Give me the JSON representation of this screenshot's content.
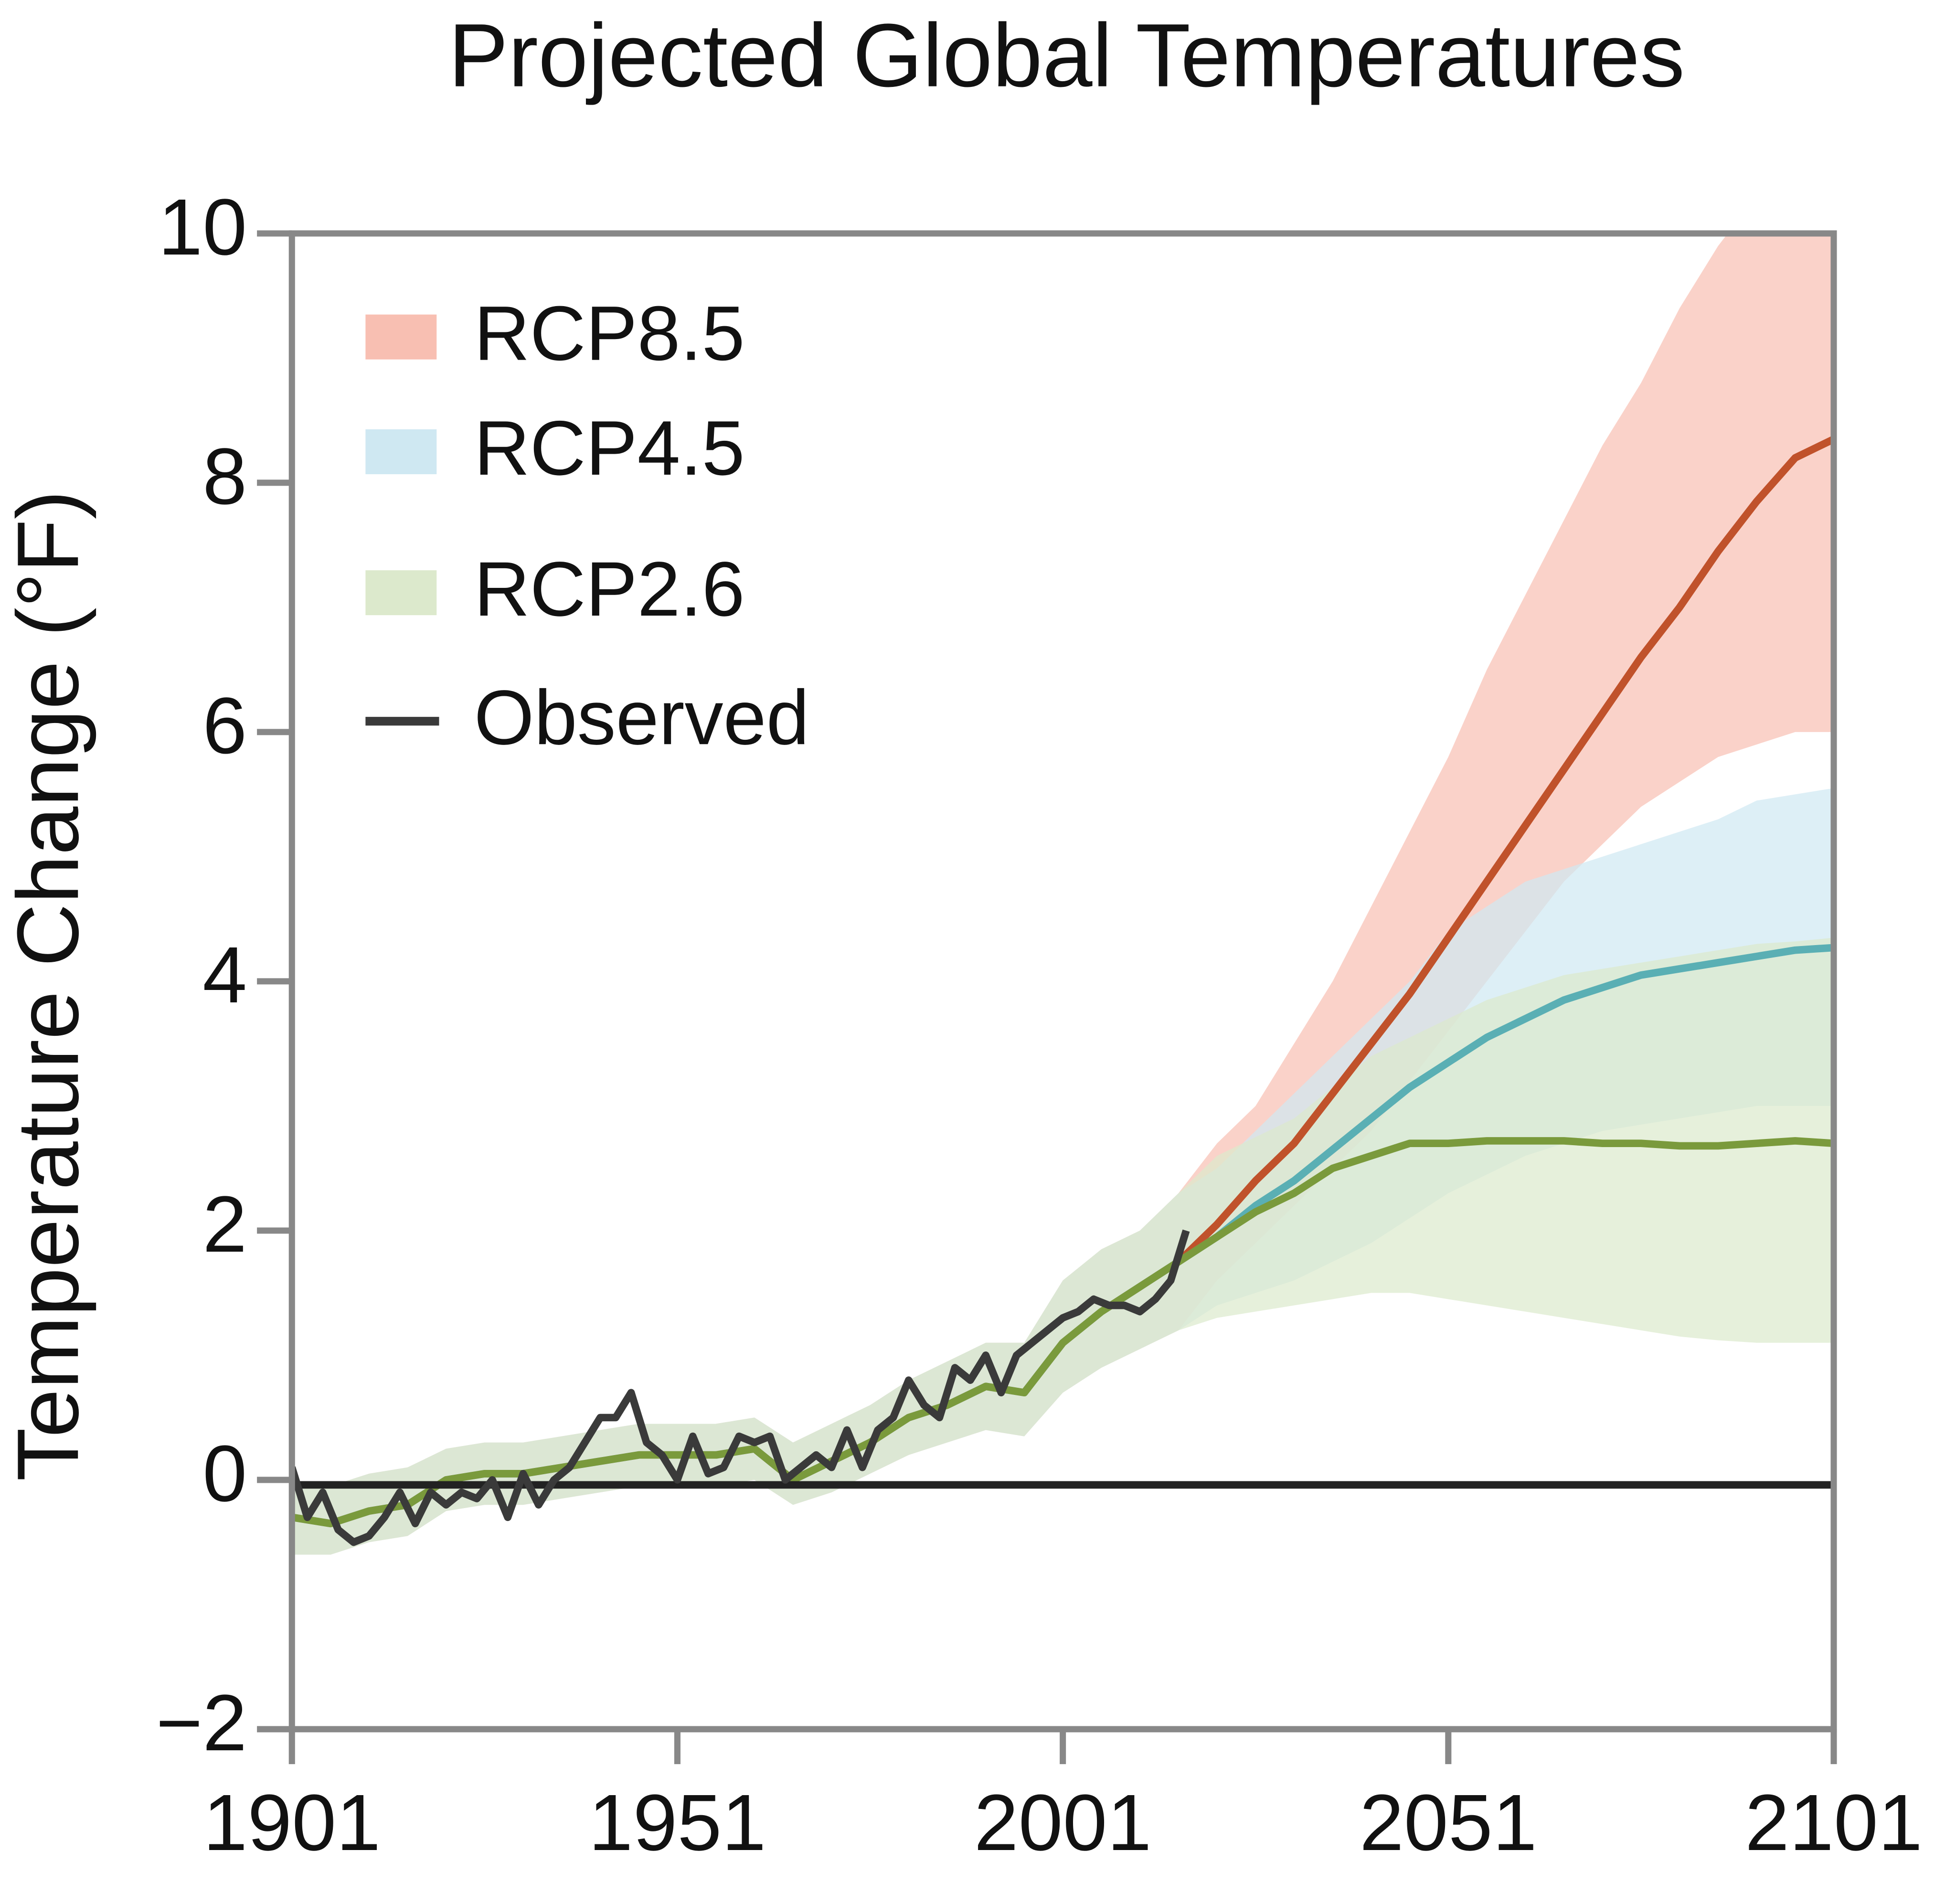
{
  "chart_data": {
    "type": "line",
    "title": "Projected Global Temperatures",
    "y_label": "Temperature Change (°F)",
    "x": [
      1901,
      1906,
      1911,
      1916,
      1921,
      1926,
      1931,
      1936,
      1941,
      1946,
      1951,
      1956,
      1961,
      1966,
      1971,
      1976,
      1981,
      1986,
      1991,
      1996,
      2001,
      2006,
      2011,
      2016,
      2021,
      2026,
      2031,
      2036,
      2041,
      2046,
      2051,
      2056,
      2061,
      2066,
      2071,
      2076,
      2081,
      2086,
      2091,
      2096,
      2101
    ],
    "xlim": [
      1901,
      2101
    ],
    "xticks": [
      1901,
      1951,
      2001,
      2051,
      2101
    ],
    "ylim": [
      -2,
      10
    ],
    "yticks": [
      {
        "value": -2,
        "label": "−2"
      },
      0,
      2,
      4,
      6,
      8,
      10
    ],
    "zero_line": 0,
    "legend": "upper left",
    "series": [
      {
        "name": "RCP8.5",
        "color": "#c0522b",
        "band_color": "#f8bfb2",
        "values": [
          -0.3,
          -0.35,
          -0.25,
          -0.2,
          0.0,
          0.05,
          0.05,
          0.1,
          0.15,
          0.2,
          0.2,
          0.2,
          0.25,
          0.0,
          0.15,
          0.3,
          0.5,
          0.6,
          0.75,
          0.7,
          1.1,
          1.35,
          1.55,
          1.75,
          2.05,
          2.4,
          2.7,
          3.1,
          3.5,
          3.9,
          4.35,
          4.8,
          5.25,
          5.7,
          6.15,
          6.6,
          7.0,
          7.45,
          7.85,
          8.2,
          8.35
        ],
        "lower": [
          -0.6,
          -0.6,
          -0.5,
          -0.45,
          -0.25,
          -0.2,
          -0.2,
          -0.15,
          -0.1,
          -0.05,
          -0.05,
          -0.05,
          0.0,
          -0.2,
          -0.1,
          0.05,
          0.2,
          0.3,
          0.4,
          0.35,
          0.7,
          0.9,
          1.05,
          1.2,
          1.6,
          1.9,
          2.2,
          2.5,
          2.8,
          3.2,
          3.6,
          4.0,
          4.4,
          4.8,
          5.1,
          5.4,
          5.6,
          5.8,
          5.9,
          6.0,
          6.0
        ],
        "upper": [
          0.0,
          -0.05,
          0.05,
          0.1,
          0.25,
          0.3,
          0.3,
          0.35,
          0.4,
          0.45,
          0.45,
          0.45,
          0.5,
          0.3,
          0.45,
          0.6,
          0.8,
          0.95,
          1.1,
          1.1,
          1.6,
          1.85,
          2.0,
          2.3,
          2.7,
          3.0,
          3.5,
          4.0,
          4.6,
          5.2,
          5.8,
          6.5,
          7.1,
          7.7,
          8.3,
          8.8,
          9.4,
          9.9,
          10.3,
          10.6,
          10.9
        ]
      },
      {
        "name": "RCP4.5",
        "color": "#5aafb4",
        "band_color": "#cfe8f2",
        "values": [
          -0.3,
          -0.35,
          -0.25,
          -0.2,
          0.0,
          0.05,
          0.05,
          0.1,
          0.15,
          0.2,
          0.2,
          0.2,
          0.25,
          0.0,
          0.15,
          0.3,
          0.5,
          0.6,
          0.75,
          0.7,
          1.1,
          1.35,
          1.55,
          1.75,
          1.95,
          2.2,
          2.4,
          2.65,
          2.9,
          3.15,
          3.35,
          3.55,
          3.7,
          3.85,
          3.95,
          4.05,
          4.1,
          4.15,
          4.2,
          4.25,
          4.27
        ],
        "lower": [
          -0.6,
          -0.6,
          -0.5,
          -0.45,
          -0.25,
          -0.2,
          -0.2,
          -0.15,
          -0.1,
          -0.05,
          -0.05,
          -0.05,
          0.0,
          -0.2,
          -0.1,
          0.05,
          0.2,
          0.3,
          0.4,
          0.35,
          0.7,
          0.9,
          1.05,
          1.2,
          1.4,
          1.5,
          1.6,
          1.75,
          1.9,
          2.1,
          2.3,
          2.45,
          2.6,
          2.7,
          2.8,
          2.85,
          2.9,
          2.95,
          3.0,
          3.0,
          3.0
        ],
        "upper": [
          0.0,
          -0.05,
          0.05,
          0.1,
          0.25,
          0.3,
          0.3,
          0.35,
          0.4,
          0.45,
          0.45,
          0.45,
          0.5,
          0.3,
          0.45,
          0.6,
          0.8,
          0.95,
          1.1,
          1.1,
          1.6,
          1.85,
          2.0,
          2.3,
          2.5,
          2.8,
          3.1,
          3.4,
          3.7,
          4.0,
          4.4,
          4.6,
          4.8,
          4.9,
          5.0,
          5.1,
          5.2,
          5.3,
          5.45,
          5.5,
          5.55
        ]
      },
      {
        "name": "RCP2.6",
        "color": "#7a9a3c",
        "band_color": "#dce9cc",
        "values": [
          -0.3,
          -0.35,
          -0.25,
          -0.2,
          0.0,
          0.05,
          0.05,
          0.1,
          0.15,
          0.2,
          0.2,
          0.2,
          0.25,
          0.0,
          0.15,
          0.3,
          0.5,
          0.6,
          0.75,
          0.7,
          1.1,
          1.35,
          1.55,
          1.75,
          1.95,
          2.15,
          2.3,
          2.5,
          2.6,
          2.7,
          2.7,
          2.72,
          2.72,
          2.72,
          2.7,
          2.7,
          2.68,
          2.68,
          2.7,
          2.72,
          2.7
        ],
        "lower": [
          -0.6,
          -0.6,
          -0.5,
          -0.45,
          -0.25,
          -0.2,
          -0.2,
          -0.15,
          -0.1,
          -0.05,
          -0.05,
          -0.05,
          0.0,
          -0.2,
          -0.1,
          0.05,
          0.2,
          0.3,
          0.4,
          0.35,
          0.7,
          0.9,
          1.05,
          1.2,
          1.3,
          1.35,
          1.4,
          1.45,
          1.5,
          1.5,
          1.45,
          1.4,
          1.35,
          1.3,
          1.25,
          1.2,
          1.15,
          1.12,
          1.1,
          1.1,
          1.1
        ],
        "upper": [
          0.0,
          -0.05,
          0.05,
          0.1,
          0.25,
          0.3,
          0.3,
          0.35,
          0.4,
          0.45,
          0.45,
          0.45,
          0.5,
          0.3,
          0.45,
          0.6,
          0.8,
          0.95,
          1.1,
          1.1,
          1.6,
          1.85,
          2.0,
          2.3,
          2.6,
          2.75,
          2.9,
          3.15,
          3.4,
          3.55,
          3.7,
          3.85,
          3.95,
          4.05,
          4.1,
          4.15,
          4.2,
          4.25,
          4.3,
          4.32,
          4.35
        ]
      },
      {
        "name": "Observed",
        "color": "#3a3a3a",
        "x": [
          1901,
          1903,
          1905,
          1907,
          1909,
          1911,
          1913,
          1915,
          1917,
          1919,
          1921,
          1923,
          1925,
          1927,
          1929,
          1931,
          1933,
          1935,
          1937,
          1939,
          1941,
          1943,
          1945,
          1947,
          1949,
          1951,
          1953,
          1955,
          1957,
          1959,
          1961,
          1963,
          1965,
          1967,
          1969,
          1971,
          1973,
          1975,
          1977,
          1979,
          1981,
          1983,
          1985,
          1987,
          1989,
          1991,
          1993,
          1995,
          1997,
          1999,
          2001,
          2003,
          2005,
          2007,
          2009,
          2011,
          2013,
          2015,
          2017
        ],
        "values": [
          0.1,
          -0.3,
          -0.1,
          -0.4,
          -0.5,
          -0.45,
          -0.3,
          -0.1,
          -0.35,
          -0.1,
          -0.2,
          -0.1,
          -0.15,
          0.0,
          -0.3,
          0.05,
          -0.2,
          0.0,
          0.1,
          0.3,
          0.5,
          0.5,
          0.7,
          0.3,
          0.2,
          0.0,
          0.35,
          0.05,
          0.1,
          0.35,
          0.3,
          0.35,
          0.0,
          0.1,
          0.2,
          0.1,
          0.4,
          0.1,
          0.4,
          0.5,
          0.8,
          0.6,
          0.5,
          0.9,
          0.8,
          1.0,
          0.7,
          1.0,
          1.1,
          1.2,
          1.3,
          1.35,
          1.45,
          1.4,
          1.4,
          1.35,
          1.45,
          1.6,
          2.0
        ]
      }
    ]
  }
}
